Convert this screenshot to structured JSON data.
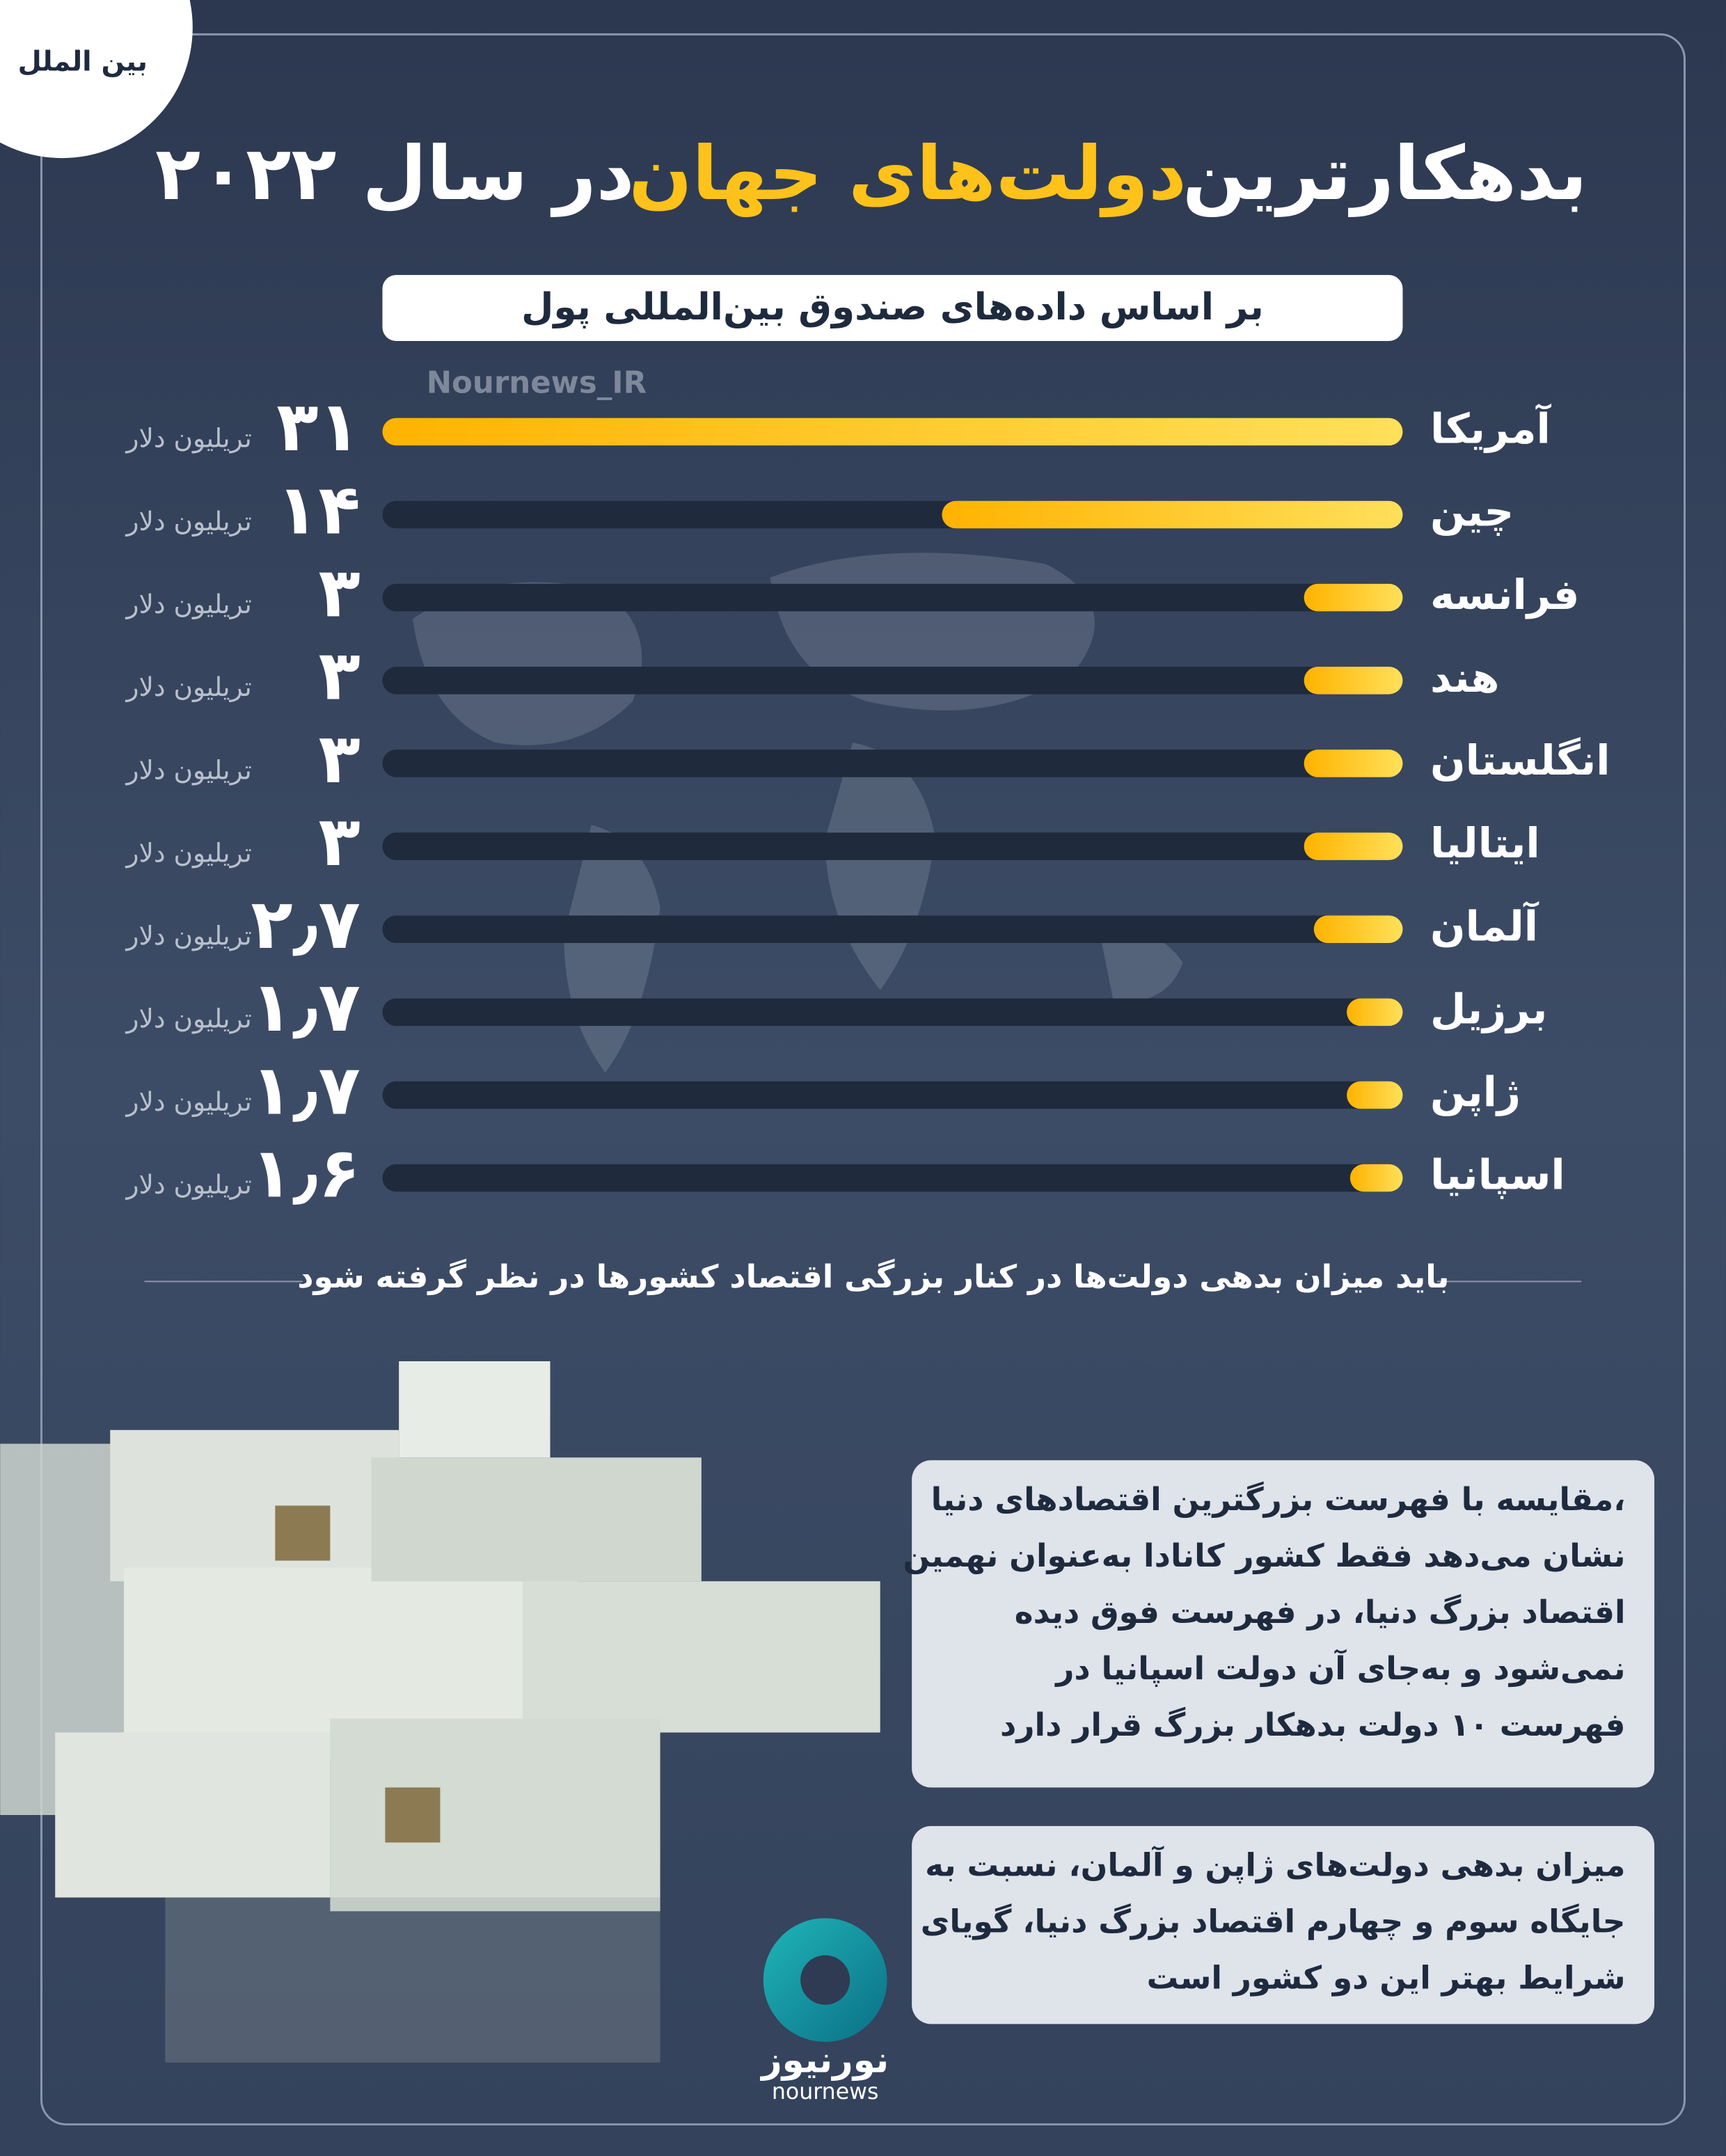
{
  "header": {
    "tag": "بین الملل",
    "title_parts": [
      "بدهکارترین",
      "دولت‌های جهان",
      "در سال ۲۰۲۲"
    ],
    "subtitle": "بر اساس داده‌های صندوق بین‌المللی پول",
    "watermark": "Nournews_IR"
  },
  "chart_data": {
    "type": "bar",
    "orientation": "horizontal",
    "categories": [
      "آمریکا",
      "چین",
      "فرانسه",
      "هند",
      "انگلستان",
      "ایتالیا",
      "آلمان",
      "برزیل",
      "ژاپن",
      "اسپانیا"
    ],
    "values": [
      31,
      14,
      3,
      3,
      3,
      3,
      2.7,
      1.7,
      1.7,
      1.6
    ],
    "value_labels": [
      "۳۱",
      "۱۴",
      "۳",
      "۳",
      "۳",
      "۳",
      "۲٫۷",
      "۱٫۷",
      "۱٫۷",
      "۱٫۶"
    ],
    "unit": "تریلیون دلار",
    "xlim": [
      0,
      31
    ],
    "color": "#ffb300"
  },
  "footnote": "باید میزان بدهی دولت‌ها در کنار بزرگی اقتصاد کشورها در نظر گرفته شود",
  "notes": [
    [
      "مقایسه با فهرست بزرگترین اقتصادهای دنیا،",
      "نشان می‌دهد فقط کشور کانادا به‌عنوان نهمین",
      "اقتصاد بزرگ دنیا، در فهرست فوق دیده",
      "نمی‌شود و به‌جای آن دولت اسپانیا در",
      "فهرست ۱۰ دولت بدهکار بزرگ قرار دارد"
    ],
    [
      "میزان بدهی دولت‌های ژاپن و آلمان، نسبت به",
      "جایگاه سوم و چهارم اقتصاد بزرگ دنیا، گویای",
      "شرایط بهتر این دو کشور است"
    ]
  ],
  "logo": {
    "name": "نورنیوز",
    "latin": "nournews"
  }
}
